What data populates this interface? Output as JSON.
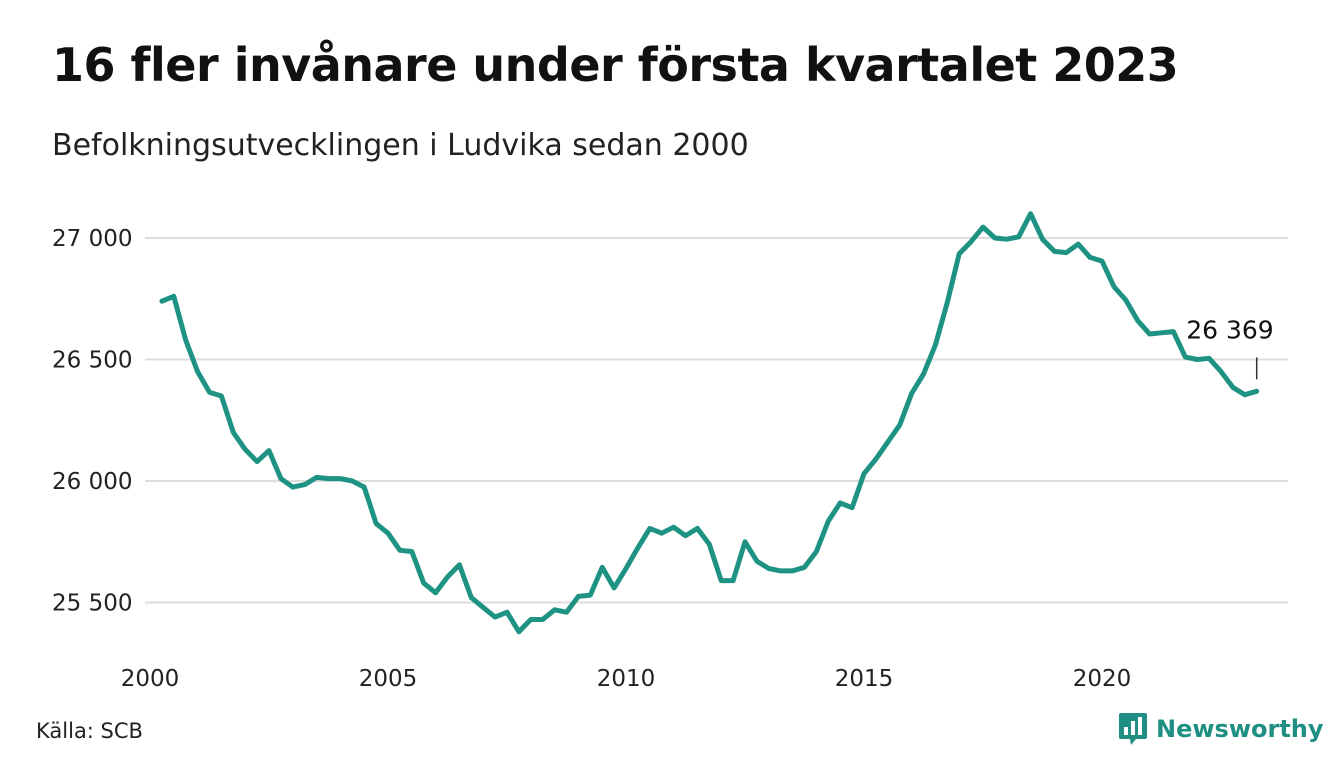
{
  "title": "16 fler invånare under första kvartalet 2023",
  "subtitle": "Befolkningsutvecklingen i Ludvika sedan 2000",
  "source": "Källa: SCB",
  "brand": {
    "name": "Newsworthy",
    "icon": "bar-chart-logo-icon"
  },
  "colors": {
    "line": "#1f9383",
    "grid": "#dddddd",
    "brand": "#1f8f83"
  },
  "chart_data": {
    "type": "line",
    "title": "16 fler invånare under första kvartalet 2023",
    "subtitle": "Befolkningsutvecklingen i Ludvika sedan 2000",
    "xlabel": "",
    "ylabel": "",
    "xlim": [
      2000,
      2023.5
    ],
    "ylim": [
      25320,
      27130
    ],
    "x_ticks": [
      2000,
      2005,
      2010,
      2015,
      2020
    ],
    "x_tick_labels": [
      "2000",
      "2005",
      "2010",
      "2015",
      "2020"
    ],
    "y_ticks": [
      25500,
      26000,
      26500,
      27000
    ],
    "y_tick_labels": [
      "25 500",
      "26 000",
      "26 500",
      "27 000"
    ],
    "grid": "horizontal",
    "end_label": "26 369",
    "series": [
      {
        "x": [
          2000.25,
          2000.5,
          2000.75,
          2001.0,
          2001.25,
          2001.5,
          2001.75,
          2002.0,
          2002.25,
          2002.5,
          2002.75,
          2003.0,
          2003.25,
          2003.5,
          2003.75,
          2004.0,
          2004.25,
          2004.5,
          2004.75,
          2005.0,
          2005.25,
          2005.5,
          2005.75,
          2006.0,
          2006.25,
          2006.5,
          2006.75,
          2007.0,
          2007.25,
          2007.5,
          2007.75,
          2008.0,
          2008.25,
          2008.5,
          2008.75,
          2009.0,
          2009.25,
          2009.5,
          2009.75,
          2010.0,
          2010.25,
          2010.5,
          2010.75,
          2011.0,
          2011.25,
          2011.5,
          2011.75,
          2012.0,
          2012.25,
          2012.5,
          2012.75,
          2013.0,
          2013.25,
          2013.5,
          2013.75,
          2014.0,
          2014.25,
          2014.5,
          2014.75,
          2015.0,
          2015.25,
          2015.5,
          2015.75,
          2016.0,
          2016.25,
          2016.5,
          2016.75,
          2017.0,
          2017.25,
          2017.5,
          2017.75,
          2018.0,
          2018.25,
          2018.5,
          2018.75,
          2019.0,
          2019.25,
          2019.5,
          2019.75,
          2020.0,
          2020.25,
          2020.5,
          2020.75,
          2021.0,
          2021.25,
          2021.5,
          2021.75,
          2022.0,
          2022.25,
          2022.5,
          2022.75,
          2023.0,
          2023.25
        ],
        "values": [
          26740,
          26760,
          26580,
          26450,
          26365,
          26350,
          26200,
          26130,
          26080,
          26125,
          26010,
          25975,
          25985,
          26015,
          26010,
          26010,
          26000,
          25975,
          25825,
          25785,
          25715,
          25710,
          25580,
          25540,
          25605,
          25655,
          25520,
          25480,
          25440,
          25460,
          25380,
          25430,
          25430,
          25470,
          25460,
          25525,
          25530,
          25645,
          25560,
          25640,
          25725,
          25805,
          25785,
          25810,
          25775,
          25805,
          25740,
          25590,
          25590,
          25750,
          25670,
          25640,
          25630,
          25630,
          25645,
          25710,
          25835,
          25910,
          25890,
          26030,
          26090,
          26160,
          26230,
          26360,
          26440,
          26560,
          26735,
          26935,
          26985,
          27045,
          27000,
          26995,
          27005,
          27100,
          26995,
          26945,
          26940,
          26975,
          26920,
          26905,
          26800,
          26745,
          26660,
          26605,
          26610,
          26615,
          26510,
          26500,
          26505,
          26450,
          26385,
          26355,
          26369
        ]
      }
    ]
  }
}
